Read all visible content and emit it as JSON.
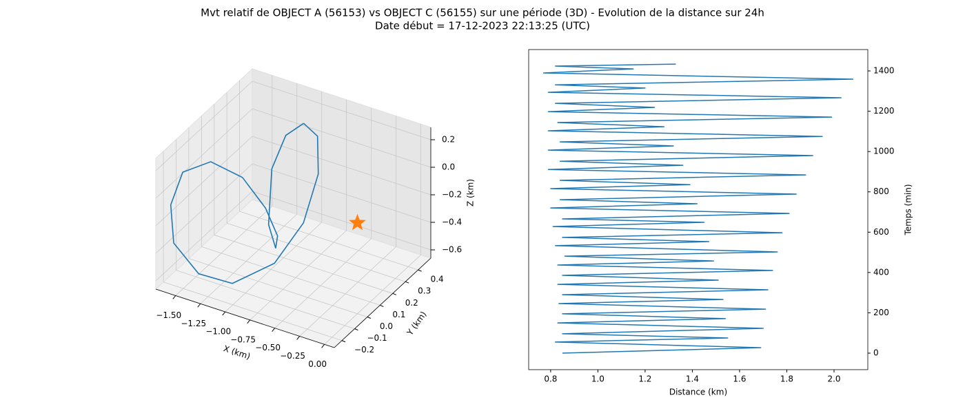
{
  "title": "Mvt relatif de OBJECT A (56153) vs OBJECT C (56155) sur une période (3D) - Evolution de la distance sur 24h",
  "subtitle": "Date début = 17-12-2023 22:13:25 (UTC)",
  "chart_data": [
    {
      "type": "line3d",
      "xlabel": "X (km)",
      "ylabel": "Y (km)",
      "zlabel": "Z (km)",
      "xlim": [
        -1.7,
        0.1
      ],
      "ylim": [
        -0.26,
        0.5
      ],
      "zlim": [
        -0.66,
        0.29
      ],
      "xticks": [
        {
          "value": -1.5,
          "label": "−1.50"
        },
        {
          "value": -1.25,
          "label": "−1.25"
        },
        {
          "value": -1.0,
          "label": "−1.00"
        },
        {
          "value": -0.75,
          "label": "−0.75"
        },
        {
          "value": -0.5,
          "label": "−0.50"
        },
        {
          "value": -0.25,
          "label": "−0.25"
        },
        {
          "value": 0,
          "label": "0.00"
        }
      ],
      "yticks": [
        {
          "value": -0.2,
          "label": "−0.2"
        },
        {
          "value": -0.1,
          "label": "−0.1"
        },
        {
          "value": 0,
          "label": "0.0"
        },
        0.1,
        0.2,
        0.3,
        0.4
      ],
      "zticks": [
        {
          "value": -0.6,
          "label": "−0.6"
        },
        {
          "value": -0.4,
          "label": "−0.4"
        },
        {
          "value": -0.2,
          "label": "−0.2"
        },
        {
          "value": 0,
          "label": "0.0"
        },
        0.2
      ],
      "grid": true,
      "series": [
        {
          "color": "#1f77b4",
          "x": [
            -0.99,
            -0.85,
            -0.74,
            -0.8,
            -0.99,
            -1.12,
            -1.46,
            -1.66,
            -1.69,
            -1.62,
            -1.44,
            -1.21,
            -1.08,
            -1.01,
            -1.08,
            -1.19,
            -1.26,
            -1.17,
            -0.99
          ],
          "y": [
            0.35,
            0.35,
            0.27,
            0.2,
            0.12,
            -0.11,
            -0.11,
            -0.15,
            -0.15,
            -0.11,
            -0.03,
            0.04,
            0.12,
            0.16,
            0.2,
            0.23,
            0.31,
            0.35,
            0.35
          ],
          "z": [
            0.19,
            0.13,
            -0.05,
            -0.36,
            -0.63,
            -0.61,
            -0.62,
            -0.41,
            -0.14,
            0.08,
            0.13,
            0.01,
            -0.25,
            -0.47,
            -0.61,
            -0.49,
            -0.17,
            0.06,
            0.19
          ]
        }
      ],
      "points": [
        {
          "x": 0,
          "y": 0,
          "z": 0,
          "color": "#ff7f0e",
          "marker": "star"
        }
      ]
    },
    {
      "type": "line",
      "xlabel": "Distance (km)",
      "ylabel": "Temps (min)",
      "yaxis_side": "right",
      "xlim": [
        0.707,
        2.143
      ],
      "ylim": [
        -82,
        1506
      ],
      "xticks": [
        0.8,
        {
          "value": 1.0,
          "label": "1.0"
        },
        1.2,
        1.4,
        1.6,
        1.8,
        {
          "value": 2.0,
          "label": "2.0"
        }
      ],
      "yticks": [
        0,
        200,
        400,
        600,
        800,
        1000,
        1200,
        1400
      ],
      "series": [
        {
          "color": "#1f77b4",
          "x": [
            0.85,
            1.69,
            0.82,
            1.55,
            0.85,
            1.7,
            0.83,
            1.54,
            0.85,
            1.71,
            0.835,
            1.53,
            0.85,
            1.72,
            0.83,
            1.51,
            0.85,
            1.74,
            0.83,
            1.49,
            0.86,
            1.76,
            0.82,
            1.47,
            0.85,
            1.78,
            0.81,
            1.45,
            0.85,
            1.81,
            0.8,
            1.42,
            0.84,
            1.84,
            0.8,
            1.39,
            0.84,
            1.88,
            0.79,
            1.36,
            0.84,
            1.91,
            0.79,
            1.32,
            0.84,
            1.95,
            0.79,
            1.28,
            0.83,
            1.99,
            0.79,
            1.24,
            0.82,
            2.03,
            0.79,
            1.2,
            0.82,
            2.08,
            0.77,
            1.15,
            0.82,
            1.33
          ],
          "values": [
            0,
            27,
            55,
            75,
            96,
            123,
            150,
            171,
            195,
            218,
            246,
            266,
            290,
            314,
            341,
            362,
            386,
            410,
            437,
            457,
            481,
            502,
            533,
            553,
            574,
            597,
            628,
            649,
            666,
            693,
            720,
            741,
            761,
            789,
            816,
            836,
            857,
            884,
            911,
            932,
            952,
            980,
            1007,
            1028,
            1048,
            1075,
            1103,
            1123,
            1144,
            1171,
            1198,
            1219,
            1239,
            1267,
            1294,
            1315,
            1331,
            1359,
            1390,
            1410,
            1424,
            1434
          ]
        }
      ]
    }
  ]
}
